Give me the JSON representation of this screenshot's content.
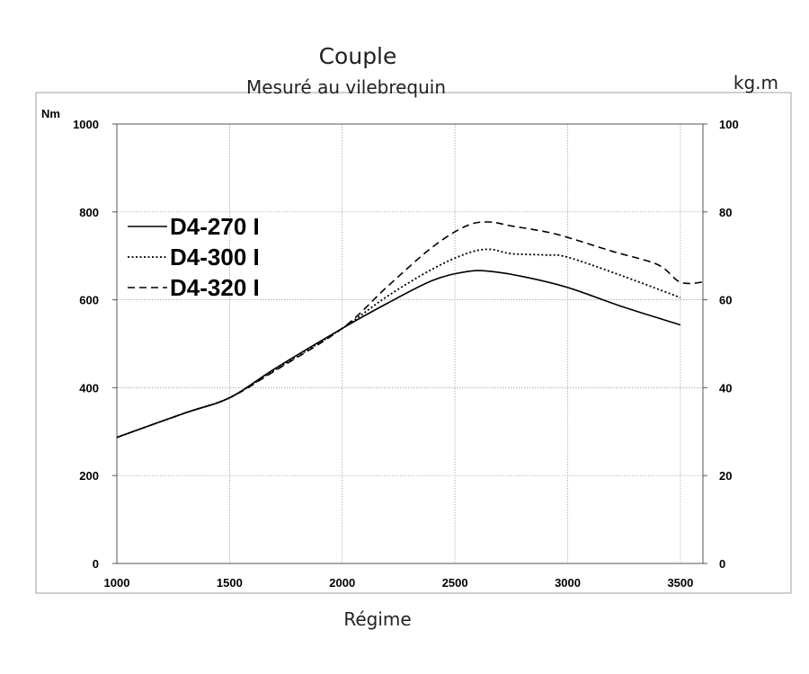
{
  "chart_data": {
    "type": "line",
    "title": "Couple",
    "subtitle": "Mesuré au vilebrequin",
    "xlabel": "Régime",
    "ylabel_left": "Nm",
    "ylabel_right": "kg.m",
    "xlim": [
      1000,
      3600
    ],
    "ylim_left": [
      0,
      1000
    ],
    "ylim_right": [
      0,
      100
    ],
    "x_ticks": [
      "1000",
      "1500",
      "2000",
      "2500",
      "3000",
      "3500"
    ],
    "y_ticks_left": [
      "0",
      "200",
      "400",
      "600",
      "800",
      "1000"
    ],
    "y_ticks_right": [
      "0",
      "20",
      "40",
      "60",
      "80",
      "100"
    ],
    "grid": true,
    "legend_position": "left",
    "series": [
      {
        "name": "D4-270 I",
        "style": "solid",
        "color": "#000000",
        "x": [
          1000,
          1300,
          1500,
          1700,
          2000,
          2200,
          2400,
          2550,
          2650,
          2800,
          3000,
          3250,
          3500
        ],
        "y": [
          287,
          342,
          377,
          443,
          535,
          592,
          644,
          664,
          665,
          653,
          628,
          583,
          543
        ]
      },
      {
        "name": "D4-300 I",
        "style": "dotted",
        "color": "#000000",
        "x": [
          1000,
          1300,
          1500,
          1700,
          2000,
          2200,
          2400,
          2550,
          2650,
          2750,
          2900,
          3000,
          3250,
          3500
        ],
        "y": [
          287,
          342,
          377,
          440,
          535,
          608,
          670,
          705,
          715,
          705,
          702,
          697,
          653,
          605
        ]
      },
      {
        "name": "D4-320 I",
        "style": "dashed",
        "color": "#000000",
        "x": [
          1000,
          1300,
          1500,
          1700,
          2000,
          2200,
          2400,
          2550,
          2650,
          2750,
          2900,
          3000,
          3200,
          3400,
          3500,
          3600
        ],
        "y": [
          287,
          342,
          377,
          438,
          535,
          630,
          720,
          768,
          777,
          768,
          755,
          742,
          710,
          680,
          640,
          640
        ]
      }
    ]
  }
}
